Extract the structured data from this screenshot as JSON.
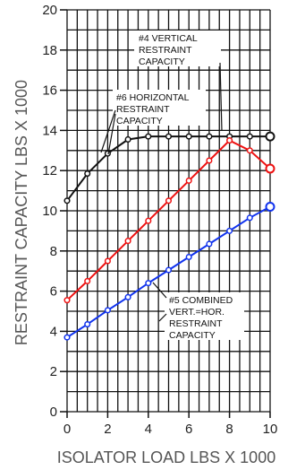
{
  "chart_data": {
    "type": "line",
    "xlabel": "ISOLATOR LOAD LBS X 1000",
    "ylabel": "RESTRAINT CAPACITY LBS X 1000",
    "xlim": [
      0,
      10
    ],
    "ylim": [
      0,
      20
    ],
    "x_ticks": [
      0,
      2,
      4,
      6,
      8,
      10
    ],
    "y_ticks": [
      0,
      2,
      4,
      6,
      8,
      10,
      12,
      14,
      16,
      18,
      20
    ],
    "grid": true,
    "series": [
      {
        "id": "horizontal",
        "color": "#111111",
        "x": [
          0,
          1,
          2,
          3,
          4,
          5,
          6,
          7,
          8,
          9,
          10
        ],
        "values": [
          10.5,
          11.85,
          12.85,
          13.55,
          13.7,
          13.7,
          13.7,
          13.7,
          13.7,
          13.7,
          13.7
        ]
      },
      {
        "id": "vertical",
        "color": "#ee1111",
        "x": [
          0,
          1,
          2,
          3,
          4,
          5,
          6,
          7,
          8,
          9,
          10
        ],
        "values": [
          5.55,
          6.5,
          7.5,
          8.5,
          9.5,
          10.5,
          11.5,
          12.5,
          13.5,
          13.0,
          12.1
        ]
      },
      {
        "id": "combined",
        "color": "#1133ee",
        "x": [
          0,
          1,
          2,
          3,
          4,
          5,
          6,
          7,
          8,
          9,
          10
        ],
        "values": [
          3.7,
          4.35,
          5.05,
          5.7,
          6.4,
          7.05,
          7.7,
          8.35,
          9.0,
          9.65,
          10.2
        ]
      }
    ],
    "annotations": [
      {
        "id": "vertical",
        "lines": [
          "#4 VERTICAL",
          "RESTRAINT",
          "CAPACITY"
        ]
      },
      {
        "id": "horizontal",
        "lines": [
          "#6 HORIZONTAL",
          "RESTRAINT",
          "CAPACITY"
        ]
      },
      {
        "id": "combined",
        "lines": [
          "#5 COMBINED",
          "VERT.=HOR.",
          "RESTRAINT",
          "CAPACITY"
        ]
      }
    ]
  }
}
